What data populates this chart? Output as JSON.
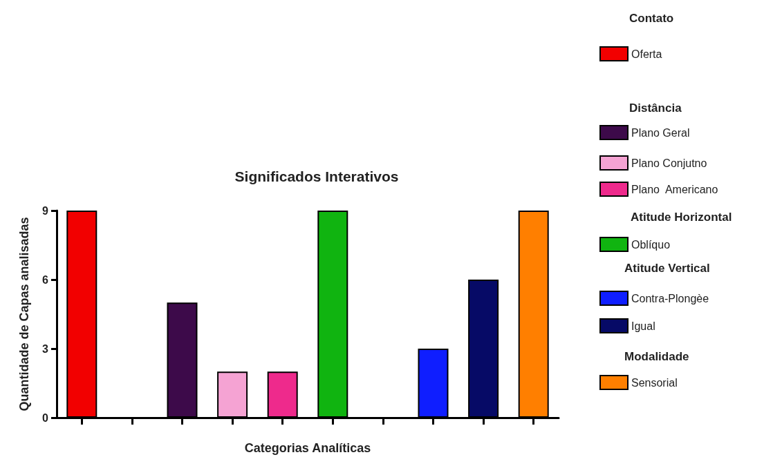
{
  "chart_data": {
    "type": "bar",
    "title": "Significados Interativos",
    "xlabel": "Categorias Analíticas",
    "ylabel": "Quantidade de Capas analisadas",
    "categories": [
      null,
      null,
      null,
      null,
      null,
      null,
      null,
      null,
      null,
      null
    ],
    "ylim": [
      0,
      9
    ],
    "yticks": [
      0,
      3,
      6,
      9
    ],
    "grid": false,
    "legend": "right",
    "annotations": [
      "Contato",
      "Distância",
      "Atitude Horizontal",
      "Atitude Vertical",
      "Modalidade"
    ],
    "series": [
      {
        "name": "Oferta",
        "color": "#f20000",
        "values": [
          9,
          null,
          null,
          null,
          null,
          null,
          null,
          null,
          null,
          null
        ]
      },
      {
        "name": "Plano Geral",
        "color": "#3d0a4a",
        "values": [
          null,
          null,
          5,
          null,
          null,
          null,
          null,
          null,
          null,
          null
        ]
      },
      {
        "name": "Plano Conjutno",
        "color": "#f5a3d3",
        "values": [
          null,
          null,
          null,
          2,
          null,
          null,
          null,
          null,
          null,
          null
        ]
      },
      {
        "name": "Plano  Americano",
        "color": "#ee2a8c",
        "values": [
          null,
          null,
          null,
          null,
          2,
          null,
          null,
          null,
          null,
          null
        ]
      },
      {
        "name": "Oblíquo",
        "color": "#10b410",
        "values": [
          null,
          null,
          null,
          null,
          null,
          9,
          null,
          null,
          null,
          null
        ]
      },
      {
        "name": "Contra-Plongèe",
        "color": "#0f1eff",
        "values": [
          null,
          null,
          null,
          null,
          null,
          null,
          null,
          3,
          null,
          null
        ]
      },
      {
        "name": "Igual",
        "color": "#060a66",
        "values": [
          null,
          null,
          null,
          null,
          null,
          null,
          null,
          null,
          6,
          null
        ]
      },
      {
        "name": "Sensorial",
        "color": "#ff7f00",
        "values": [
          null,
          null,
          null,
          null,
          null,
          null,
          null,
          null,
          null,
          9
        ]
      }
    ]
  }
}
